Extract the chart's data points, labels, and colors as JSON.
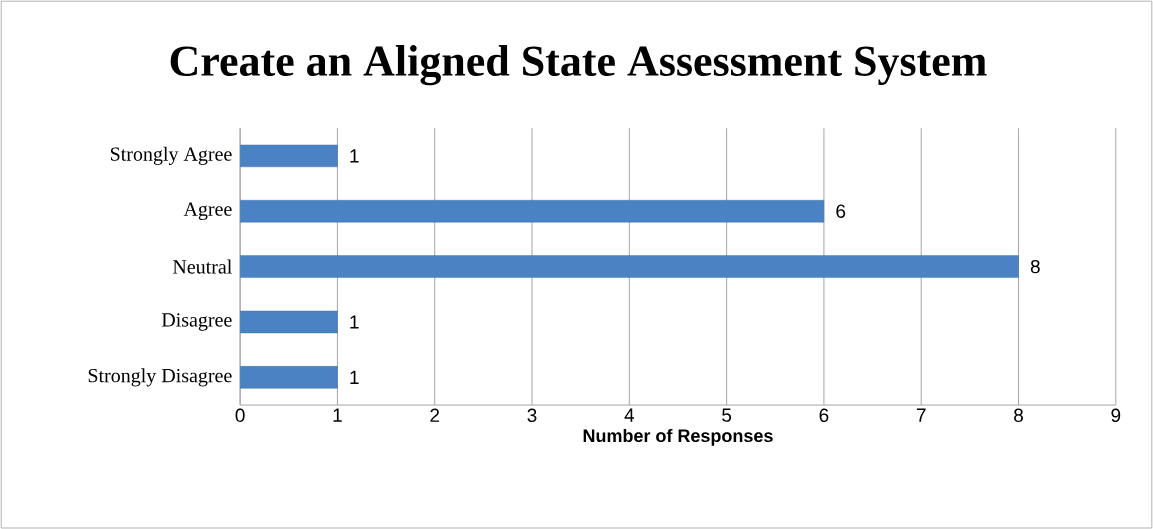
{
  "chart_data": {
    "type": "bar",
    "orientation": "horizontal",
    "title": "Create an Aligned State Assessment System",
    "xlabel": "Number of Responses",
    "categories": [
      "Strongly Agree",
      "Agree",
      "Neutral",
      "Disagree",
      "Strongly Disagree"
    ],
    "values": [
      1,
      6,
      8,
      1,
      1
    ],
    "color": "#4a82c3",
    "xlim": [
      0,
      9
    ],
    "xticks": [
      0,
      1,
      2,
      3,
      4,
      5,
      6,
      7,
      8,
      9
    ],
    "grid": "x",
    "data_labels": true
  }
}
